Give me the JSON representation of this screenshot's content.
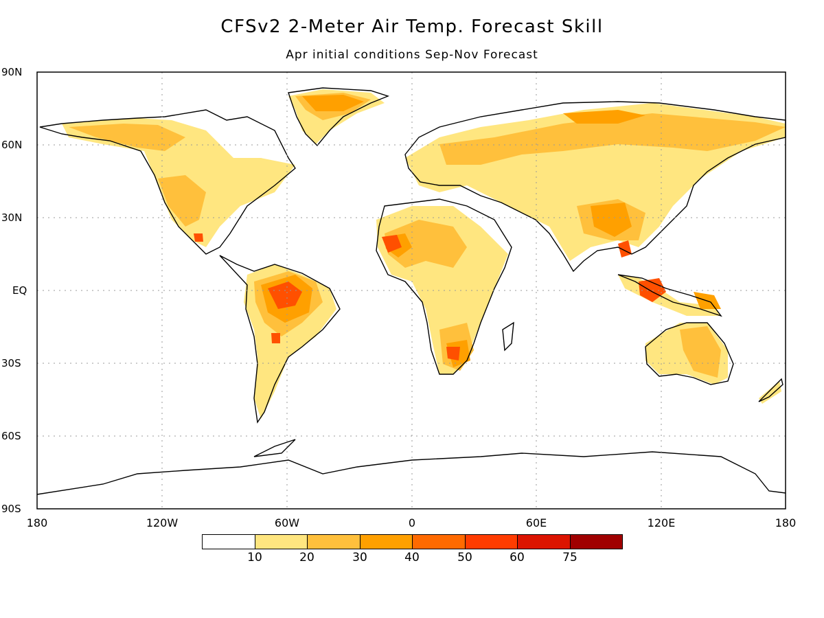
{
  "title": "CFSv2 2-Meter Air Temp. Forecast Skill",
  "subtitle": "Apr initial conditions   Sep-Nov Forecast",
  "lat_labels": [
    "90N",
    "60N",
    "30N",
    "EQ",
    "30S",
    "60S",
    "90S"
  ],
  "lon_labels": [
    "180",
    "120W",
    "60W",
    "0",
    "60E",
    "120E",
    "180"
  ],
  "colorbar": {
    "labels": [
      "10",
      "20",
      "30",
      "40",
      "50",
      "60",
      "75"
    ],
    "colors": [
      "#ffffff",
      "#ffe680",
      "#ffc03c",
      "#ffa000",
      "#ff6a00",
      "#ff3c00",
      "#dc1400",
      "#a00000"
    ]
  }
}
